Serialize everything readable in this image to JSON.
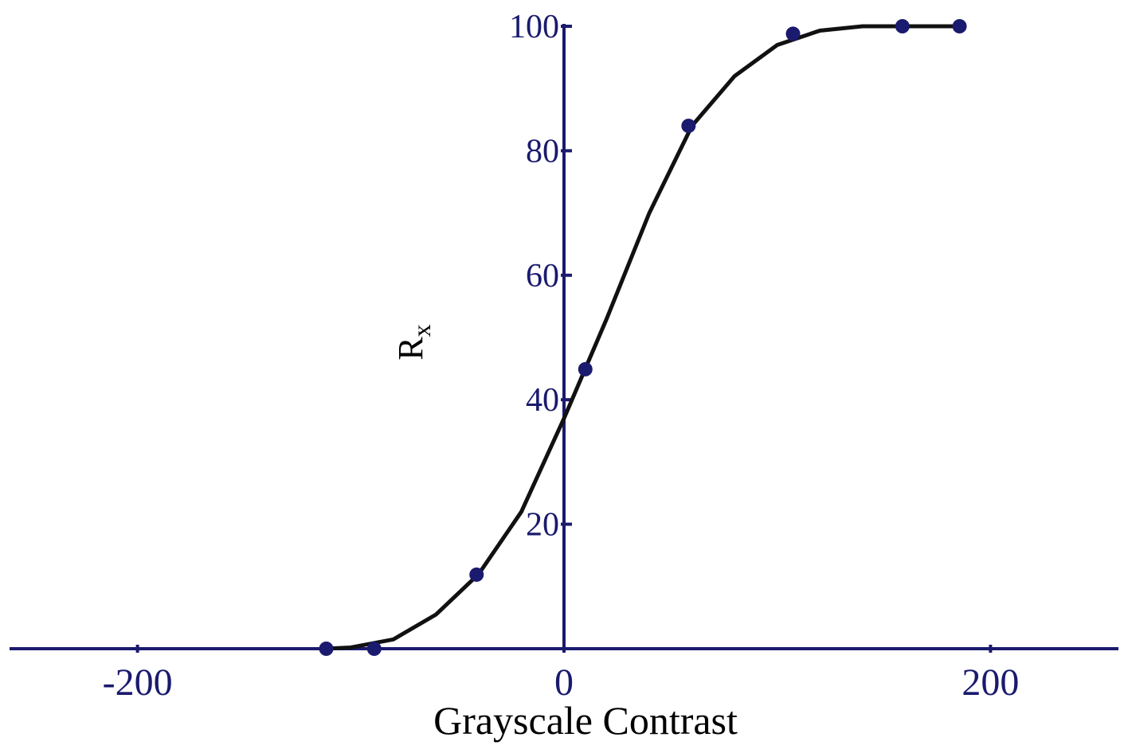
{
  "chart_data": {
    "type": "scatter",
    "xlabel": "Grayscale Contrast",
    "ylabel": "R",
    "ylabel_sub": "x",
    "xlim": [
      -260,
      260
    ],
    "ylim": [
      0,
      100
    ],
    "xticks": [
      -200,
      0,
      200
    ],
    "yticks": [
      20,
      40,
      60,
      80,
      100
    ],
    "axis_color": "#1a1a6e",
    "points": {
      "color": "#1a1a6e",
      "x": [
        -111.5,
        -89,
        -41,
        10,
        58.4,
        107.4,
        158.7,
        185.5
      ],
      "values": [
        0,
        0,
        11.9,
        44.9,
        84,
        98.8,
        100,
        100
      ]
    },
    "curve": {
      "color": "#111111",
      "x": [
        -112,
        -100,
        -80,
        -60,
        -40,
        -20,
        0,
        20,
        40,
        60,
        80,
        100,
        120,
        140,
        160,
        185
      ],
      "values": [
        0,
        0.2,
        1.5,
        5.5,
        12,
        22,
        37,
        53,
        70,
        84,
        92,
        97,
        99.3,
        100,
        100,
        100
      ]
    }
  }
}
